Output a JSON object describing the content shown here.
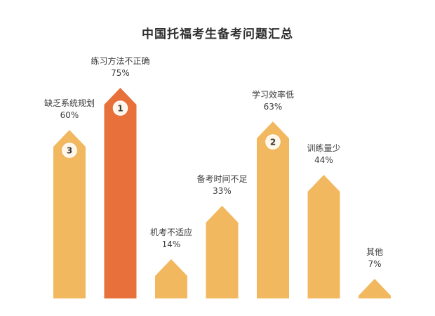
{
  "chart_data": {
    "type": "bar",
    "title": "中国托福考生备考问题汇总",
    "categories": [
      "缺乏系统规划",
      "练习方法不正确",
      "机考不适应",
      "备考时间不足",
      "学习效率低",
      "训练量少",
      "其他"
    ],
    "values": [
      60,
      75,
      14,
      33,
      63,
      44,
      7
    ],
    "value_labels": [
      "60%",
      "75%",
      "14%",
      "33%",
      "63%",
      "44%",
      "7%"
    ],
    "rank_badges": [
      "3",
      "1",
      "",
      "",
      "2",
      "",
      ""
    ],
    "colors": {
      "default_bar": "#F2B85F",
      "highlight_bar": "#E8703A",
      "text": "#3a3a3a",
      "badge_fill": "#FFF6E8",
      "badge_text": "#3a3a3a"
    },
    "highlight_index": 1,
    "ylim": [
      0,
      100
    ],
    "grid": false,
    "legend": "none",
    "xlabel": "",
    "ylabel": ""
  }
}
